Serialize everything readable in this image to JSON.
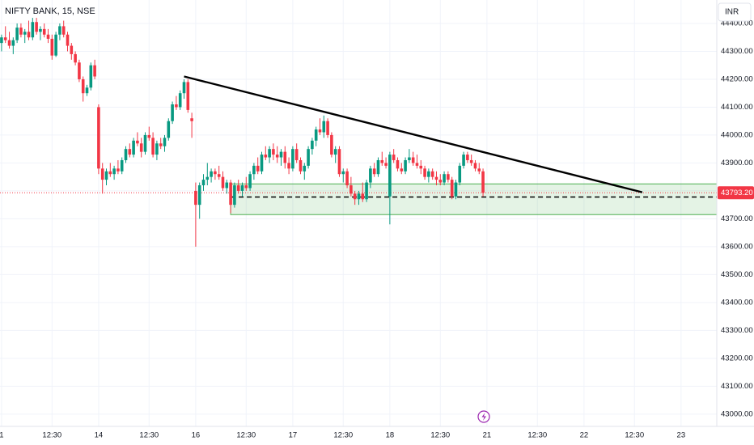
{
  "chart_data": {
    "type": "candlestick",
    "title": "NIFTY BANK, 15, NSE",
    "currency": "INR",
    "up_color": "#089981",
    "down_color": "#f23645",
    "grid": true,
    "xlim": [
      -0.4,
      184.2
    ],
    "ylim": [
      42956,
      44484
    ],
    "xticks": [
      {
        "value": 0,
        "label": "1"
      },
      {
        "value": 13,
        "label": "12:30"
      },
      {
        "value": 25,
        "label": "14"
      },
      {
        "value": 38,
        "label": "12:30"
      },
      {
        "value": 50,
        "label": "16"
      },
      {
        "value": 63,
        "label": "12:30"
      },
      {
        "value": 75,
        "label": "17"
      },
      {
        "value": 88,
        "label": "12:30"
      },
      {
        "value": 100,
        "label": "18"
      },
      {
        "value": 113,
        "label": "12:30"
      },
      {
        "value": 125,
        "label": "21"
      },
      {
        "value": 138,
        "label": "12:30"
      },
      {
        "value": 150,
        "label": "22"
      },
      {
        "value": 163,
        "label": "12:30"
      },
      {
        "value": 175,
        "label": "23"
      }
    ],
    "yticks": [
      {
        "value": 43000,
        "label": "43000.00"
      },
      {
        "value": 43100,
        "label": "43100.00"
      },
      {
        "value": 43200,
        "label": "43200.00"
      },
      {
        "value": 43300,
        "label": "43300.00"
      },
      {
        "value": 43400,
        "label": "43400.00"
      },
      {
        "value": 43500,
        "label": "43500.00"
      },
      {
        "value": 43600,
        "label": "43600.00"
      },
      {
        "value": 43700,
        "label": "43700.00"
      },
      {
        "value": 43800,
        "label": "43800.00"
      },
      {
        "value": 43900,
        "label": "43900.00"
      },
      {
        "value": 44000,
        "label": "44000.00"
      },
      {
        "value": 44100,
        "label": "44100.00"
      },
      {
        "value": 44200,
        "label": "44200.00"
      },
      {
        "value": 44300,
        "label": "44300.00"
      },
      {
        "value": 44400,
        "label": "44400.00"
      }
    ],
    "last_price": {
      "value": 43793.2,
      "label": "43793.20",
      "color": "#f23645"
    },
    "trendline": {
      "x": [
        47,
        165
      ],
      "y": [
        44210,
        43795
      ],
      "color": "#000000"
    },
    "zone": {
      "x": [
        59,
        184.2
      ],
      "y": [
        43715,
        43825
      ],
      "color": "#4caf50"
    },
    "level": {
      "x": [
        59,
        184.2
      ],
      "y": 43778,
      "color": "#000000"
    },
    "x": [
      0,
      1,
      2,
      3,
      4,
      5,
      6,
      7,
      8,
      9,
      10,
      11,
      12,
      13,
      14,
      15,
      16,
      17,
      18,
      19,
      20,
      21,
      22,
      23,
      24,
      25,
      26,
      27,
      28,
      29,
      30,
      31,
      32,
      33,
      34,
      35,
      36,
      37,
      38,
      39,
      40,
      41,
      42,
      43,
      44,
      45,
      46,
      47,
      48,
      49,
      50,
      51,
      52,
      53,
      54,
      55,
      56,
      57,
      58,
      59,
      60,
      61,
      62,
      63,
      64,
      65,
      66,
      67,
      68,
      69,
      70,
      71,
      72,
      73,
      74,
      75,
      76,
      77,
      78,
      79,
      80,
      81,
      82,
      83,
      84,
      85,
      86,
      87,
      88,
      89,
      90,
      91,
      92,
      93,
      94,
      95,
      96,
      97,
      98,
      99,
      100,
      101,
      102,
      103,
      104,
      105,
      106,
      107,
      108,
      109,
      110,
      111,
      112,
      113,
      114,
      115,
      116,
      117,
      118,
      119,
      120,
      121,
      122,
      123,
      124
    ],
    "ohlc": [
      [
        44330,
        44360,
        44300,
        44350
      ],
      [
        44350,
        44390,
        44330,
        44340
      ],
      [
        44340,
        44370,
        44310,
        44320
      ],
      [
        44320,
        44350,
        44290,
        44340
      ],
      [
        44340,
        44400,
        44330,
        44385
      ],
      [
        44385,
        44400,
        44350,
        44360
      ],
      [
        44360,
        44380,
        44330,
        44370
      ],
      [
        44370,
        44410,
        44340,
        44350
      ],
      [
        44350,
        44420,
        44340,
        44405
      ],
      [
        44405,
        44420,
        44360,
        44370
      ],
      [
        44370,
        44390,
        44340,
        44380
      ],
      [
        44380,
        44400,
        44350,
        44360
      ],
      [
        44360,
        44380,
        44330,
        44345
      ],
      [
        44345,
        44360,
        44270,
        44285
      ],
      [
        44285,
        44370,
        44280,
        44360
      ],
      [
        44360,
        44400,
        44340,
        44390
      ],
      [
        44390,
        44410,
        44350,
        44360
      ],
      [
        44360,
        44370,
        44300,
        44320
      ],
      [
        44320,
        44330,
        44270,
        44290
      ],
      [
        44290,
        44300,
        44250,
        44260
      ],
      [
        44260,
        44270,
        44190,
        44200
      ],
      [
        44200,
        44210,
        44120,
        44150
      ],
      [
        44150,
        44180,
        44140,
        44170
      ],
      [
        44170,
        44260,
        44160,
        44250
      ],
      [
        44250,
        44270,
        44200,
        44210
      ],
      [
        44100,
        44110,
        43860,
        43880
      ],
      [
        43880,
        43900,
        43790,
        43840
      ],
      [
        43840,
        43880,
        43820,
        43870
      ],
      [
        43870,
        43900,
        43850,
        43860
      ],
      [
        43860,
        43890,
        43840,
        43880
      ],
      [
        43880,
        43910,
        43860,
        43870
      ],
      [
        43870,
        43920,
        43860,
        43910
      ],
      [
        43910,
        43960,
        43900,
        43950
      ],
      [
        43950,
        43970,
        43920,
        43930
      ],
      [
        43930,
        43990,
        43920,
        43980
      ],
      [
        43980,
        44010,
        43960,
        43970
      ],
      [
        43970,
        43990,
        43920,
        43940
      ],
      [
        43940,
        44010,
        43930,
        44000
      ],
      [
        44000,
        44030,
        43980,
        43990
      ],
      [
        43990,
        44010,
        43920,
        43930
      ],
      [
        43930,
        43980,
        43910,
        43970
      ],
      [
        43970,
        43990,
        43950,
        43960
      ],
      [
        43960,
        44000,
        43940,
        43990
      ],
      [
        43990,
        44060,
        43980,
        44050
      ],
      [
        44050,
        44120,
        44040,
        44110
      ],
      [
        44110,
        44140,
        44090,
        44100
      ],
      [
        44100,
        44160,
        44090,
        44150
      ],
      [
        44150,
        44200,
        44130,
        44190
      ],
      [
        44190,
        44200,
        44080,
        44090
      ],
      [
        44060,
        44080,
        43990,
        44050
      ],
      [
        43800,
        43830,
        43600,
        43750
      ],
      [
        43750,
        43830,
        43700,
        43820
      ],
      [
        43820,
        43860,
        43800,
        43840
      ],
      [
        43840,
        43900,
        43820,
        43850
      ],
      [
        43850,
        43880,
        43830,
        43870
      ],
      [
        43870,
        43880,
        43840,
        43860
      ],
      [
        43860,
        43890,
        43840,
        43850
      ],
      [
        43850,
        43870,
        43800,
        43810
      ],
      [
        43810,
        43840,
        43790,
        43830
      ],
      [
        43830,
        43840,
        43720,
        43750
      ],
      [
        43750,
        43830,
        43740,
        43820
      ],
      [
        43820,
        43840,
        43790,
        43800
      ],
      [
        43800,
        43830,
        43780,
        43820
      ],
      [
        43820,
        43850,
        43800,
        43810
      ],
      [
        43810,
        43870,
        43800,
        43860
      ],
      [
        43860,
        43900,
        43840,
        43890
      ],
      [
        43890,
        43920,
        43860,
        43870
      ],
      [
        43870,
        43940,
        43860,
        43930
      ],
      [
        43930,
        43960,
        43910,
        43920
      ],
      [
        43920,
        43960,
        43900,
        43950
      ],
      [
        43950,
        43970,
        43910,
        43930
      ],
      [
        43930,
        43960,
        43900,
        43920
      ],
      [
        43920,
        43950,
        43890,
        43940
      ],
      [
        43940,
        43960,
        43880,
        43900
      ],
      [
        43900,
        43920,
        43860,
        43880
      ],
      [
        43880,
        43960,
        43870,
        43950
      ],
      [
        43950,
        43970,
        43900,
        43910
      ],
      [
        43910,
        43920,
        43860,
        43870
      ],
      [
        43870,
        43900,
        43840,
        43890
      ],
      [
        43890,
        43960,
        43880,
        43950
      ],
      [
        43950,
        43990,
        43930,
        43980
      ],
      [
        43980,
        44030,
        43960,
        44020
      ],
      [
        44020,
        44060,
        44000,
        44010
      ],
      [
        44010,
        44070,
        43990,
        44050
      ],
      [
        44050,
        44060,
        43990,
        44000
      ],
      [
        44000,
        44010,
        43920,
        43930
      ],
      [
        43930,
        43960,
        43900,
        43950
      ],
      [
        43950,
        43960,
        43850,
        43860
      ],
      [
        43860,
        43880,
        43830,
        43870
      ],
      [
        43870,
        43880,
        43810,
        43820
      ],
      [
        43820,
        43850,
        43780,
        43790
      ],
      [
        43790,
        43800,
        43750,
        43770
      ],
      [
        43770,
        43800,
        43750,
        43790
      ],
      [
        43790,
        43830,
        43760,
        43770
      ],
      [
        43770,
        43840,
        43760,
        43830
      ],
      [
        43830,
        43890,
        43810,
        43880
      ],
      [
        43880,
        43900,
        43850,
        43860
      ],
      [
        43860,
        43920,
        43850,
        43910
      ],
      [
        43910,
        43940,
        43890,
        43900
      ],
      [
        43900,
        43920,
        43880,
        43890
      ],
      [
        43780,
        43940,
        43680,
        43930
      ],
      [
        43930,
        43950,
        43900,
        43910
      ],
      [
        43910,
        43920,
        43870,
        43880
      ],
      [
        43880,
        43900,
        43860,
        43870
      ],
      [
        43870,
        43920,
        43860,
        43910
      ],
      [
        43910,
        43950,
        43900,
        43920
      ],
      [
        43920,
        43940,
        43890,
        43900
      ],
      [
        43900,
        43930,
        43880,
        43890
      ],
      [
        43890,
        43910,
        43860,
        43880
      ],
      [
        43880,
        43890,
        43840,
        43850
      ],
      [
        43850,
        43880,
        43830,
        43870
      ],
      [
        43870,
        43880,
        43840,
        43850
      ],
      [
        43850,
        43870,
        43820,
        43840
      ],
      [
        43840,
        43860,
        43820,
        43830
      ],
      [
        43830,
        43870,
        43820,
        43860
      ],
      [
        43860,
        43870,
        43830,
        43840
      ],
      [
        43840,
        43850,
        43770,
        43780
      ],
      [
        43780,
        43840,
        43770,
        43830
      ],
      [
        43830,
        43900,
        43820,
        43890
      ],
      [
        43890,
        43940,
        43880,
        43930
      ],
      [
        43930,
        43940,
        43900,
        43910
      ],
      [
        43910,
        43930,
        43890,
        43900
      ],
      [
        43900,
        43910,
        43870,
        43880
      ],
      [
        43880,
        43900,
        43860,
        43870
      ],
      [
        43870,
        43880,
        43780,
        43793.2
      ]
    ]
  }
}
